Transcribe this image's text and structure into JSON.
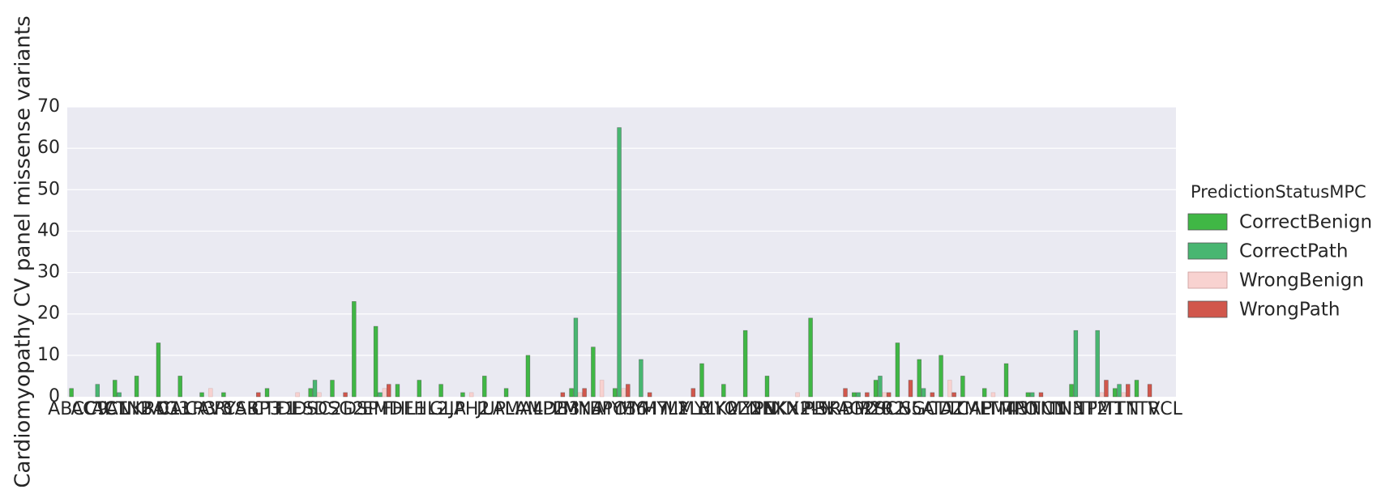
{
  "chart_data": {
    "type": "bar",
    "ylabel": "Cardiomyopathy CV panel missense variants",
    "ylim": [
      0,
      70
    ],
    "yticks": [
      0,
      10,
      20,
      30,
      40,
      50,
      60,
      70
    ],
    "grid": true,
    "legend_position": "right",
    "legend_title": "PredictionStatusMPC",
    "categories": [
      "ABCC9",
      "ACTC1",
      "ACTN2",
      "ANKRD1",
      "BAG3",
      "CALR3",
      "CAV3",
      "CRYAB",
      "CSRP3",
      "CTF1",
      "DES",
      "DSC2",
      "DSG2",
      "DSP",
      "EMD",
      "FHL1",
      "FHL2",
      "GLA",
      "JPH2",
      "JUP",
      "LAMA4",
      "LAMP2",
      "LDB3",
      "LMNA",
      "MYBPC3",
      "MYH6",
      "MYH7",
      "MYL2",
      "MYL3",
      "MYLK2",
      "MYOZ2",
      "MYPN",
      "NEXN",
      "NKX2-5",
      "PLN",
      "PRKAG2",
      "RBM20",
      "RYR2",
      "SCN5A",
      "SGCD",
      "TAZ",
      "TCAP",
      "TMEM43",
      "TMPO",
      "TNNC1",
      "TNNI3",
      "TNNT2",
      "TPM1",
      "TTN",
      "TTR",
      "VCL"
    ],
    "series": [
      {
        "name": "CorrectBenign",
        "color": "#40b745",
        "values": [
          2,
          0,
          4,
          5,
          13,
          5,
          1,
          1,
          0,
          2,
          0,
          2,
          4,
          23,
          17,
          3,
          4,
          3,
          1,
          5,
          2,
          10,
          0,
          2,
          12,
          2,
          0,
          0,
          0,
          8,
          3,
          16,
          5,
          0,
          19,
          0,
          1,
          4,
          13,
          9,
          10,
          5,
          2,
          8,
          1,
          0,
          3,
          0,
          2,
          4,
          0
        ]
      },
      {
        "name": "CorrectPath",
        "color": "#48b671",
        "values": [
          0,
          3,
          1,
          0,
          0,
          0,
          0,
          0,
          0,
          0,
          0,
          4,
          0,
          0,
          1,
          0,
          0,
          0,
          0,
          0,
          0,
          0,
          0,
          19,
          0,
          65,
          9,
          0,
          0,
          0,
          0,
          0,
          0,
          0,
          0,
          0,
          1,
          5,
          0,
          2,
          0,
          0,
          0,
          0,
          1,
          0,
          16,
          16,
          3,
          0,
          0
        ]
      },
      {
        "name": "WrongBenign",
        "color": "#f8d2d0",
        "values": [
          0,
          0,
          0,
          0,
          0,
          0,
          2,
          0,
          0,
          0,
          1,
          1,
          0,
          0,
          2,
          0,
          0,
          0,
          1,
          0,
          0,
          0,
          0,
          1,
          4,
          2,
          0,
          0,
          0,
          0,
          0,
          0,
          0,
          1,
          0,
          0,
          0,
          1,
          0,
          0,
          4,
          0,
          1,
          0,
          0,
          0,
          0,
          1,
          1,
          0,
          0
        ]
      },
      {
        "name": "WrongPath",
        "color": "#d1574c",
        "values": [
          0,
          0,
          0,
          0,
          0,
          0,
          0,
          0,
          1,
          0,
          0,
          0,
          1,
          0,
          3,
          0,
          0,
          0,
          0,
          0,
          0,
          0,
          1,
          2,
          0,
          3,
          1,
          0,
          2,
          0,
          0,
          0,
          0,
          0,
          0,
          2,
          1,
          1,
          4,
          1,
          1,
          0,
          0,
          0,
          1,
          0,
          0,
          4,
          3,
          3,
          0
        ]
      }
    ]
  }
}
